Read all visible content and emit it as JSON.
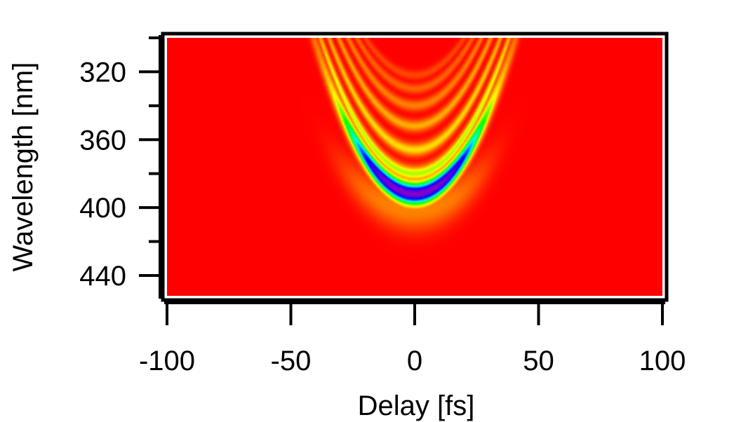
{
  "chart_data": {
    "type": "heatmap",
    "title": "",
    "xlabel": "Delay [fs]",
    "ylabel": "Wavelength [nm]",
    "xlim": [
      -100,
      100
    ],
    "ylim": [
      300,
      452
    ],
    "y_axis_inverted": true,
    "x_major_ticks": [
      -100,
      -50,
      0,
      50,
      100
    ],
    "x_tick_labels": [
      "-100",
      "-50",
      "0",
      "50",
      "100"
    ],
    "y_major_ticks": [
      320,
      360,
      400,
      440
    ],
    "y_tick_labels": [
      "320",
      "360",
      "400",
      "440"
    ],
    "y_minor_ticks": [
      300,
      340,
      380,
      420
    ],
    "grid": false,
    "legend": "none",
    "colormap": [
      "#ff0000",
      "#ff8800",
      "#ffff00",
      "#00ff00",
      "#00ffff",
      "#0000ff",
      "#8800cc"
    ],
    "background_color": "#ff0000",
    "features": {
      "min_center_delay_fs": 0,
      "min_center_wavelength_nm": 392,
      "min_level": 1.0,
      "fringe_vertex_wavelengths_nm": [
        392,
        380,
        366,
        352,
        340,
        330,
        322
      ],
      "fringe_curvature_nm_per_fs2": 0.055,
      "fringe_extent_delay_fs": [
        -50,
        50
      ]
    }
  }
}
